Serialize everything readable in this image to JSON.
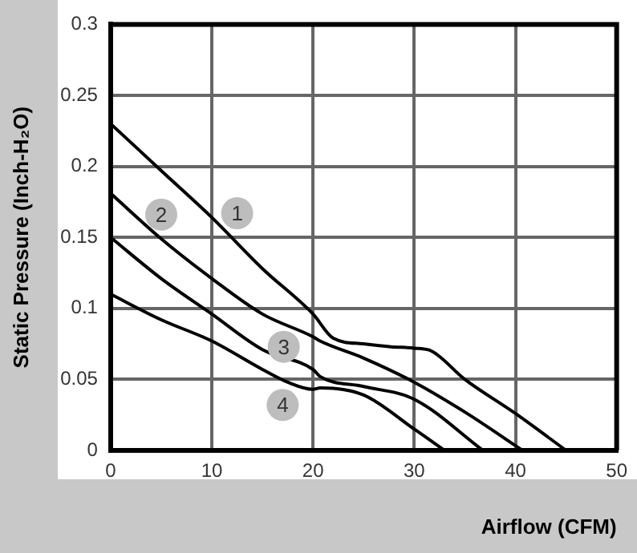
{
  "chart_data": {
    "type": "line",
    "xlabel": "Airflow (CFM)",
    "ylabel": "Static Pressure (Inch-H₂O)",
    "xlim": [
      0,
      50
    ],
    "xticks": [
      0,
      10,
      20,
      30,
      40,
      50
    ],
    "ylim": [
      0,
      0.3
    ],
    "yticks": [
      0,
      0.05,
      0.1,
      0.15,
      0.2,
      0.25,
      0.3
    ],
    "grid": true,
    "legend": false,
    "marker": "none",
    "line_style": "solid",
    "series": [
      {
        "color": "#000000",
        "x": [
          0,
          5,
          10,
          15,
          20,
          22,
          25,
          27.7,
          30,
          31.7,
          35,
          40,
          45
        ],
        "values": [
          0.23,
          0.197,
          0.164,
          0.128,
          0.096,
          0.079,
          0.075,
          0.073,
          0.072,
          0.07,
          0.05,
          0.026,
          0
        ]
      },
      {
        "color": "#000000",
        "x": [
          0,
          5,
          10,
          15,
          20,
          20.7,
          25,
          30,
          35,
          40.7
        ],
        "values": [
          0.181,
          0.149,
          0.121,
          0.096,
          0.08,
          0.077,
          0.065,
          0.048,
          0.027,
          0
        ]
      },
      {
        "color": "#000000",
        "x": [
          0,
          5,
          10,
          15,
          20,
          20.7,
          25,
          30,
          36.8
        ],
        "values": [
          0.15,
          0.121,
          0.096,
          0.071,
          0.057,
          0.052,
          0.045,
          0.036,
          0
        ]
      },
      {
        "color": "#000000",
        "x": [
          0,
          5,
          10,
          15,
          17.5,
          20,
          20.7,
          25,
          30,
          33
        ],
        "values": [
          0.11,
          0.092,
          0.077,
          0.057,
          0.048,
          0.043,
          0.044,
          0.039,
          0.015,
          0
        ]
      }
    ],
    "annotations": [
      {
        "text": "1",
        "x": 12.5,
        "y": 0.167
      },
      {
        "text": "2",
        "x": 5,
        "y": 0.166
      },
      {
        "text": "3",
        "x": 17.1,
        "y": 0.073
      },
      {
        "text": "4",
        "x": 17,
        "y": 0.032
      }
    ]
  }
}
